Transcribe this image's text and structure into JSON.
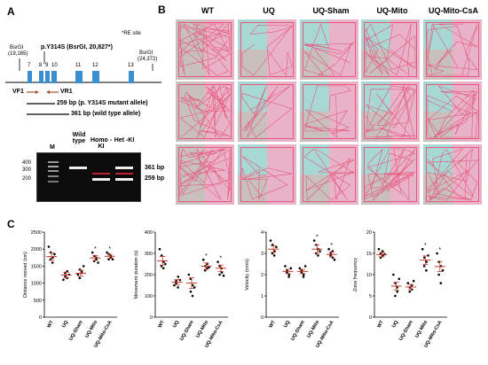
{
  "panels": {
    "a": "A",
    "b": "B",
    "c": "C"
  },
  "panel_a": {
    "re_site_note": "*RE site",
    "mutation_label": "p.Y314S (BsrGI, 20,827*)",
    "bsrgi_left": {
      "name": "BsrGI",
      "pos": "(19,165)"
    },
    "bsrgi_right": {
      "name": "BsrGI",
      "pos": "(24,372)"
    },
    "exons": [
      "7",
      "8",
      "9",
      "10",
      "11",
      "12",
      "13"
    ],
    "primer_f": "VF1",
    "primer_r": "VR1",
    "mutant_allele": "259 bp  (p. Y314S mutant allele)",
    "wt_allele": "361 bp  (wild type allele)",
    "gel": {
      "lane_labels": [
        "M",
        "Wild type",
        "Homo -KI",
        "Het -KI"
      ],
      "marker_sizes": [
        "400",
        "300",
        "200"
      ],
      "band_labels": [
        "361 bp",
        "259 bp"
      ]
    }
  },
  "panel_b": {
    "conditions": [
      "WT",
      "UQ",
      "UQ-Sham",
      "UQ-Mito",
      "UQ-Mito-CsA"
    ],
    "rows": 3,
    "colors": {
      "tile": "#d9b8c6",
      "cyan": "#a8d8d4",
      "pink": "#e8b3c8",
      "gray": "#c8c0bd",
      "track": "#e8587e"
    }
  },
  "chart_data": [
    {
      "type": "scatter",
      "ylabel": "Distance moved (cm)",
      "ylim": [
        0,
        2500
      ],
      "yticks": [
        "0",
        "500",
        "1000",
        "1500",
        "2000",
        "2500"
      ],
      "categories": [
        "WT",
        "UQ",
        "UQ-Sham",
        "UQ-Mito",
        "UQ-Mito-CsA"
      ],
      "means": [
        1780,
        1240,
        1290,
        1740,
        1790
      ],
      "sems": [
        110,
        80,
        90,
        70,
        60
      ],
      "points": [
        [
          2070,
          1900,
          1750,
          1700,
          1600,
          1850
        ],
        [
          1100,
          1200,
          1350,
          1300,
          1150,
          1250
        ],
        [
          1250,
          1400,
          1300,
          1150,
          1350,
          1500
        ],
        [
          1900,
          1800,
          1700,
          1650,
          1750,
          1600
        ],
        [
          1900,
          1850,
          1750,
          1700,
          1800,
          1700
        ]
      ],
      "stars": [
        "",
        "",
        "",
        "*",
        "*"
      ]
    },
    {
      "type": "scatter",
      "ylabel": "Movement duration (s)",
      "ylim": [
        0,
        400
      ],
      "yticks": [
        "0",
        "100",
        "200",
        "300",
        "400"
      ],
      "categories": [
        "WT",
        "UQ",
        "UQ-Sham",
        "UQ-Mito",
        "UQ-Mito-CsA"
      ],
      "means": [
        265,
        165,
        160,
        240,
        230
      ],
      "sems": [
        20,
        12,
        25,
        15,
        15
      ],
      "points": [
        [
          320,
          290,
          260,
          240,
          230,
          250
        ],
        [
          150,
          170,
          190,
          160,
          140,
          175
        ],
        [
          200,
          120,
          150,
          180,
          100,
          140
        ],
        [
          270,
          240,
          230,
          220,
          250,
          235
        ],
        [
          260,
          240,
          210,
          200,
          230,
          195
        ]
      ],
      "stars": [
        "",
        "",
        "",
        "*",
        "*"
      ]
    },
    {
      "type": "scatter",
      "ylabel": "Velocity (cm/s)",
      "ylim": [
        0,
        4
      ],
      "yticks": [
        "0",
        "1",
        "2",
        "3",
        "4"
      ],
      "categories": [
        "WT",
        "UQ",
        "UQ-Sham",
        "UQ-Mito",
        "UQ-Mito-CsA"
      ],
      "means": [
        3.2,
        2.15,
        2.15,
        3.2,
        2.95
      ],
      "sems": [
        0.15,
        0.1,
        0.1,
        0.2,
        0.12
      ],
      "points": [
        [
          3.6,
          3.4,
          3.1,
          3.0,
          2.9,
          3.3
        ],
        [
          2.4,
          2.2,
          2.0,
          2.1,
          1.9,
          2.3
        ],
        [
          2.3,
          2.1,
          2.0,
          2.2,
          1.9,
          2.4
        ],
        [
          3.6,
          3.4,
          3.2,
          3.0,
          2.9,
          3.1
        ],
        [
          3.2,
          3.0,
          2.8,
          2.9,
          3.1,
          2.7
        ]
      ],
      "stars": [
        "",
        "",
        "",
        "*",
        "*"
      ]
    },
    {
      "type": "scatter",
      "ylabel": "Zone frequency",
      "ylim": [
        0,
        20
      ],
      "yticks": [
        "0",
        "5",
        "10",
        "15",
        "20"
      ],
      "categories": [
        "WT",
        "UQ",
        "UQ-Sham",
        "UQ-Mito",
        "UQ-Mito-CsA"
      ],
      "means": [
        14.7,
        7.3,
        7.1,
        13.4,
        11.9
      ],
      "sems": [
        0.5,
        0.9,
        0.6,
        1.0,
        1.2
      ],
      "points": [
        [
          16,
          15,
          14.5,
          14,
          15.5,
          14.8
        ],
        [
          10,
          8,
          6,
          5,
          7,
          9
        ],
        [
          8,
          7,
          6.5,
          6,
          7.5,
          8.5
        ],
        [
          16,
          14,
          13,
          12,
          11,
          14.5
        ],
        [
          15,
          13,
          12,
          10,
          8,
          11
        ]
      ],
      "stars": [
        "",
        "",
        "",
        "*",
        "*"
      ]
    }
  ]
}
